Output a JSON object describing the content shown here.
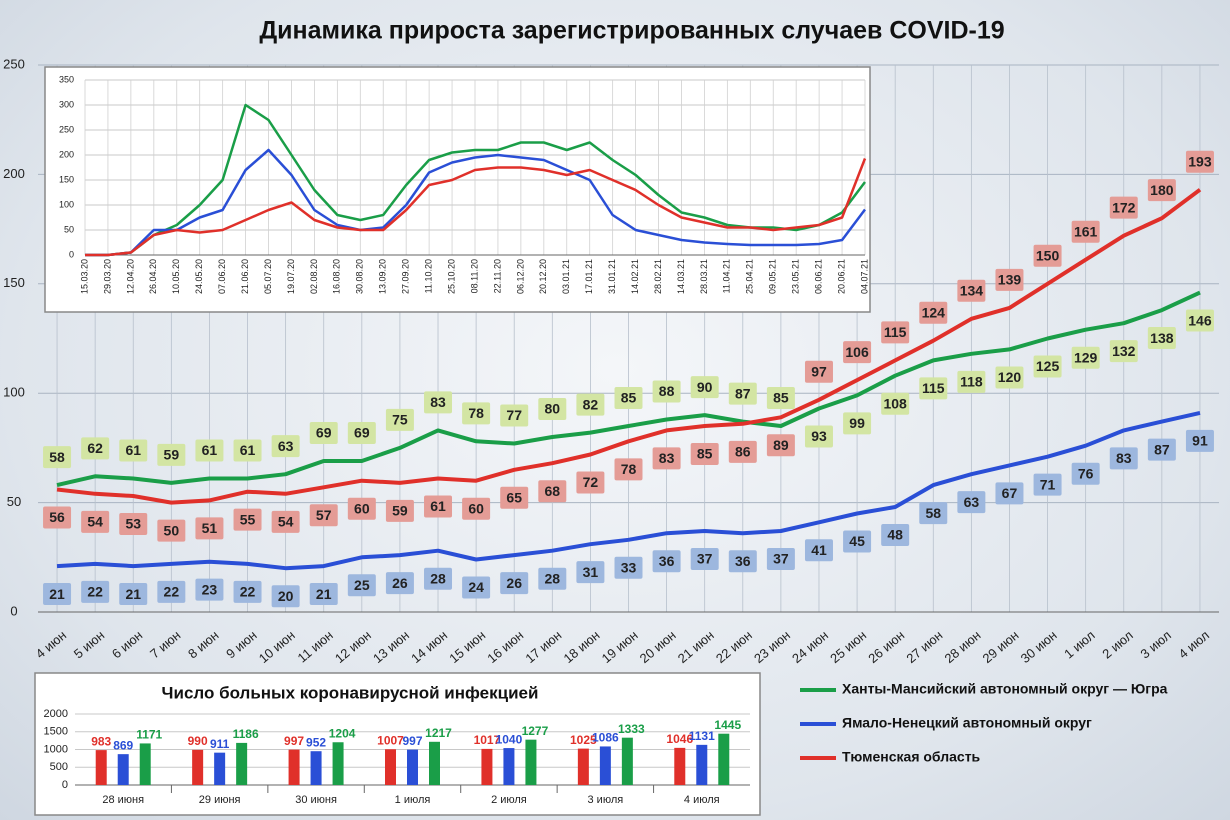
{
  "chart_data": [
    {
      "type": "line",
      "title": "Динамика прироста зарегистрированных случаев COVID-19",
      "categories": [
        "4 июн",
        "5 июн",
        "6 июн",
        "7 июн",
        "8 июн",
        "9 июн",
        "10 июн",
        "11 июн",
        "12 июн",
        "13 июн",
        "14 июн",
        "15 июн",
        "16 июн",
        "17 июн",
        "18 июн",
        "19 июн",
        "20 июн",
        "21 июн",
        "22 июн",
        "23 июн",
        "24 июн",
        "25 июн",
        "26 июн",
        "27 июн",
        "28 июн",
        "29 июн",
        "30 июн",
        "1 июл",
        "2 июл",
        "3 июл",
        "4 июл"
      ],
      "series": [
        {
          "name": "Ханты-Мансийский автономный округ — Югра",
          "color": "#1a9e48",
          "label_color": "#d3e5a3",
          "values": [
            58,
            62,
            61,
            59,
            61,
            61,
            63,
            69,
            69,
            75,
            83,
            78,
            77,
            80,
            82,
            85,
            88,
            90,
            87,
            85,
            93,
            99,
            108,
            115,
            118,
            120,
            125,
            129,
            132,
            138,
            146
          ]
        },
        {
          "name": "Ямало-Ненецкий автономный округ",
          "color": "#2a4fd6",
          "label_color": "#9db7de",
          "values": [
            21,
            22,
            21,
            22,
            23,
            22,
            20,
            21,
            25,
            26,
            28,
            24,
            26,
            28,
            31,
            33,
            36,
            37,
            36,
            37,
            41,
            45,
            48,
            58,
            63,
            67,
            71,
            76,
            83,
            87,
            91
          ]
        },
        {
          "name": "Тюменская область",
          "color": "#e0302a",
          "label_color": "#e49c96",
          "values": [
            56,
            54,
            53,
            50,
            51,
            55,
            54,
            57,
            60,
            59,
            61,
            60,
            65,
            68,
            72,
            78,
            83,
            85,
            86,
            89,
            97,
            106,
            115,
            124,
            134,
            139,
            150,
            161,
            172,
            180,
            193
          ]
        }
      ],
      "ylim": [
        0,
        250
      ],
      "yticks": [
        0,
        50,
        100,
        150,
        200,
        250
      ],
      "grid": true,
      "legend": "bottom-right"
    },
    {
      "type": "line",
      "categories": [
        "15.03.20",
        "29.03.20",
        "12.04.20",
        "26.04.20",
        "10.05.20",
        "24.05.20",
        "07.06.20",
        "21.06.20",
        "05.07.20",
        "19.07.20",
        "02.08.20",
        "16.08.20",
        "30.08.20",
        "13.09.20",
        "27.09.20",
        "11.10.20",
        "25.10.20",
        "08.11.20",
        "22.11.20",
        "06.12.20",
        "20.12.20",
        "03.01.21",
        "17.01.21",
        "31.01.21",
        "14.02.21",
        "28.02.21",
        "14.03.21",
        "28.03.21",
        "11.04.21",
        "25.04.21",
        "09.05.21",
        "23.05.21",
        "06.06.21",
        "20.06.21",
        "04.07.21"
      ],
      "series": [
        {
          "color": "#1a9e48",
          "values": [
            0,
            0,
            5,
            40,
            60,
            100,
            150,
            300,
            270,
            200,
            130,
            80,
            70,
            80,
            140,
            190,
            205,
            210,
            210,
            225,
            225,
            210,
            225,
            190,
            160,
            120,
            85,
            75,
            60,
            55,
            55,
            50,
            60,
            85,
            146
          ]
        },
        {
          "color": "#2a4fd6",
          "values": [
            0,
            0,
            5,
            50,
            50,
            75,
            90,
            170,
            210,
            160,
            90,
            60,
            50,
            55,
            100,
            165,
            185,
            195,
            200,
            195,
            190,
            170,
            150,
            80,
            50,
            40,
            30,
            25,
            22,
            20,
            20,
            20,
            22,
            30,
            91
          ]
        },
        {
          "color": "#e0302a",
          "values": [
            0,
            0,
            5,
            40,
            50,
            45,
            50,
            70,
            90,
            105,
            70,
            55,
            50,
            50,
            90,
            140,
            150,
            170,
            175,
            175,
            170,
            160,
            170,
            150,
            130,
            100,
            75,
            65,
            55,
            55,
            50,
            55,
            60,
            75,
            193
          ]
        }
      ],
      "ylim": [
        0,
        350
      ],
      "yticks": [
        0,
        50,
        100,
        150,
        200,
        250,
        300,
        350
      ],
      "grid": true
    },
    {
      "type": "bar",
      "title": "Число больных коронавирусной инфекцией",
      "categories": [
        "28 июня",
        "29 июня",
        "30 июня",
        "1 июля",
        "2 июля",
        "3 июля",
        "4 июля"
      ],
      "series": [
        {
          "color": "#e0302a",
          "values": [
            983,
            990,
            997,
            1007,
            1017,
            1025,
            1046
          ]
        },
        {
          "color": "#2a4fd6",
          "values": [
            869,
            911,
            952,
            997,
            1040,
            1086,
            1131
          ]
        },
        {
          "color": "#1a9e48",
          "values": [
            1171,
            1186,
            1204,
            1217,
            1277,
            1333,
            1445
          ]
        }
      ],
      "ylim": [
        0,
        2000
      ],
      "yticks": [
        0,
        500,
        1000,
        1500,
        2000
      ],
      "grid": true
    }
  ]
}
